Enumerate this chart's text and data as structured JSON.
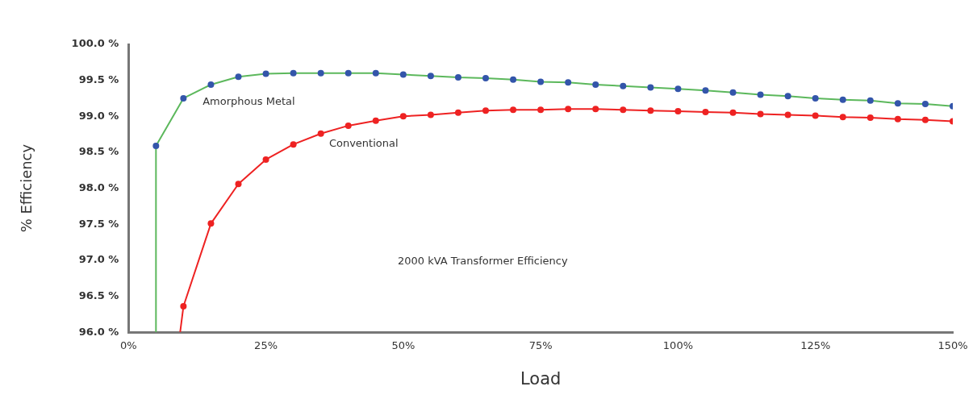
{
  "chart_data": {
    "type": "line",
    "xlabel": "Load",
    "ylabel": "% Efficiency",
    "xlim": [
      0,
      150
    ],
    "xticks": [
      {
        "value": 0,
        "label": "0%"
      },
      {
        "value": 25,
        "label": "25%"
      },
      {
        "value": 50,
        "label": "50%"
      },
      {
        "value": 75,
        "label": "75%"
      },
      {
        "value": 100,
        "label": "100%"
      },
      {
        "value": 125,
        "label": "125%"
      },
      {
        "value": 150,
        "label": "150%"
      }
    ],
    "ylim": [
      96,
      100
    ],
    "yticks": [
      {
        "value": 96,
        "label": "96.0 %"
      },
      {
        "value": 96.5,
        "label": "96.5 %"
      },
      {
        "value": 97,
        "label": "97.0 %"
      },
      {
        "value": 97.5,
        "label": "97.5 %"
      },
      {
        "value": 98,
        "label": "98.0 %"
      },
      {
        "value": 98.5,
        "label": "98.5 %"
      },
      {
        "value": 99,
        "label": "99.0 %"
      },
      {
        "value": 99.5,
        "label": "99.5 %"
      },
      {
        "value": 100,
        "label": "100.0 %"
      }
    ],
    "grid": false,
    "legend": false,
    "marker": "circle",
    "line_style": "solid",
    "series": [
      {
        "name": "Amorphous Metal",
        "color": "#5cb85c",
        "x": [
          5,
          5,
          10,
          15,
          20,
          25,
          30,
          35,
          40,
          45,
          50,
          55,
          60,
          65,
          70,
          75,
          80,
          85,
          90,
          95,
          100,
          105,
          110,
          115,
          120,
          125,
          130,
          135,
          140,
          145,
          150
        ],
        "values": [
          96,
          98.59,
          99.25,
          99.44,
          99.55,
          99.59,
          99.6,
          99.6,
          99.6,
          99.6,
          99.58,
          99.56,
          99.54,
          99.53,
          99.51,
          99.48,
          99.47,
          99.44,
          99.42,
          99.4,
          99.38,
          99.36,
          99.33,
          99.3,
          99.28,
          99.25,
          99.23,
          99.22,
          99.18,
          99.17,
          99.14
        ]
      },
      {
        "name": "Conventional",
        "color": "#ee2222",
        "x": [
          9.4,
          10,
          15,
          20,
          25,
          30,
          35,
          40,
          45,
          50,
          55,
          60,
          65,
          70,
          75,
          80,
          85,
          90,
          95,
          100,
          105,
          110,
          115,
          120,
          125,
          130,
          135,
          140,
          145,
          150
        ],
        "values": [
          96,
          96.36,
          97.51,
          98.06,
          98.4,
          98.61,
          98.76,
          98.87,
          98.94,
          99,
          99.02,
          99.05,
          99.08,
          99.09,
          99.09,
          99.1,
          99.1,
          99.09,
          99.08,
          99.07,
          99.06,
          99.05,
          99.03,
          99.02,
          99.01,
          98.99,
          98.98,
          98.96,
          98.95,
          98.93
        ]
      }
    ],
    "annotations": [
      "2000 kVA Transformer Efficiency"
    ]
  }
}
